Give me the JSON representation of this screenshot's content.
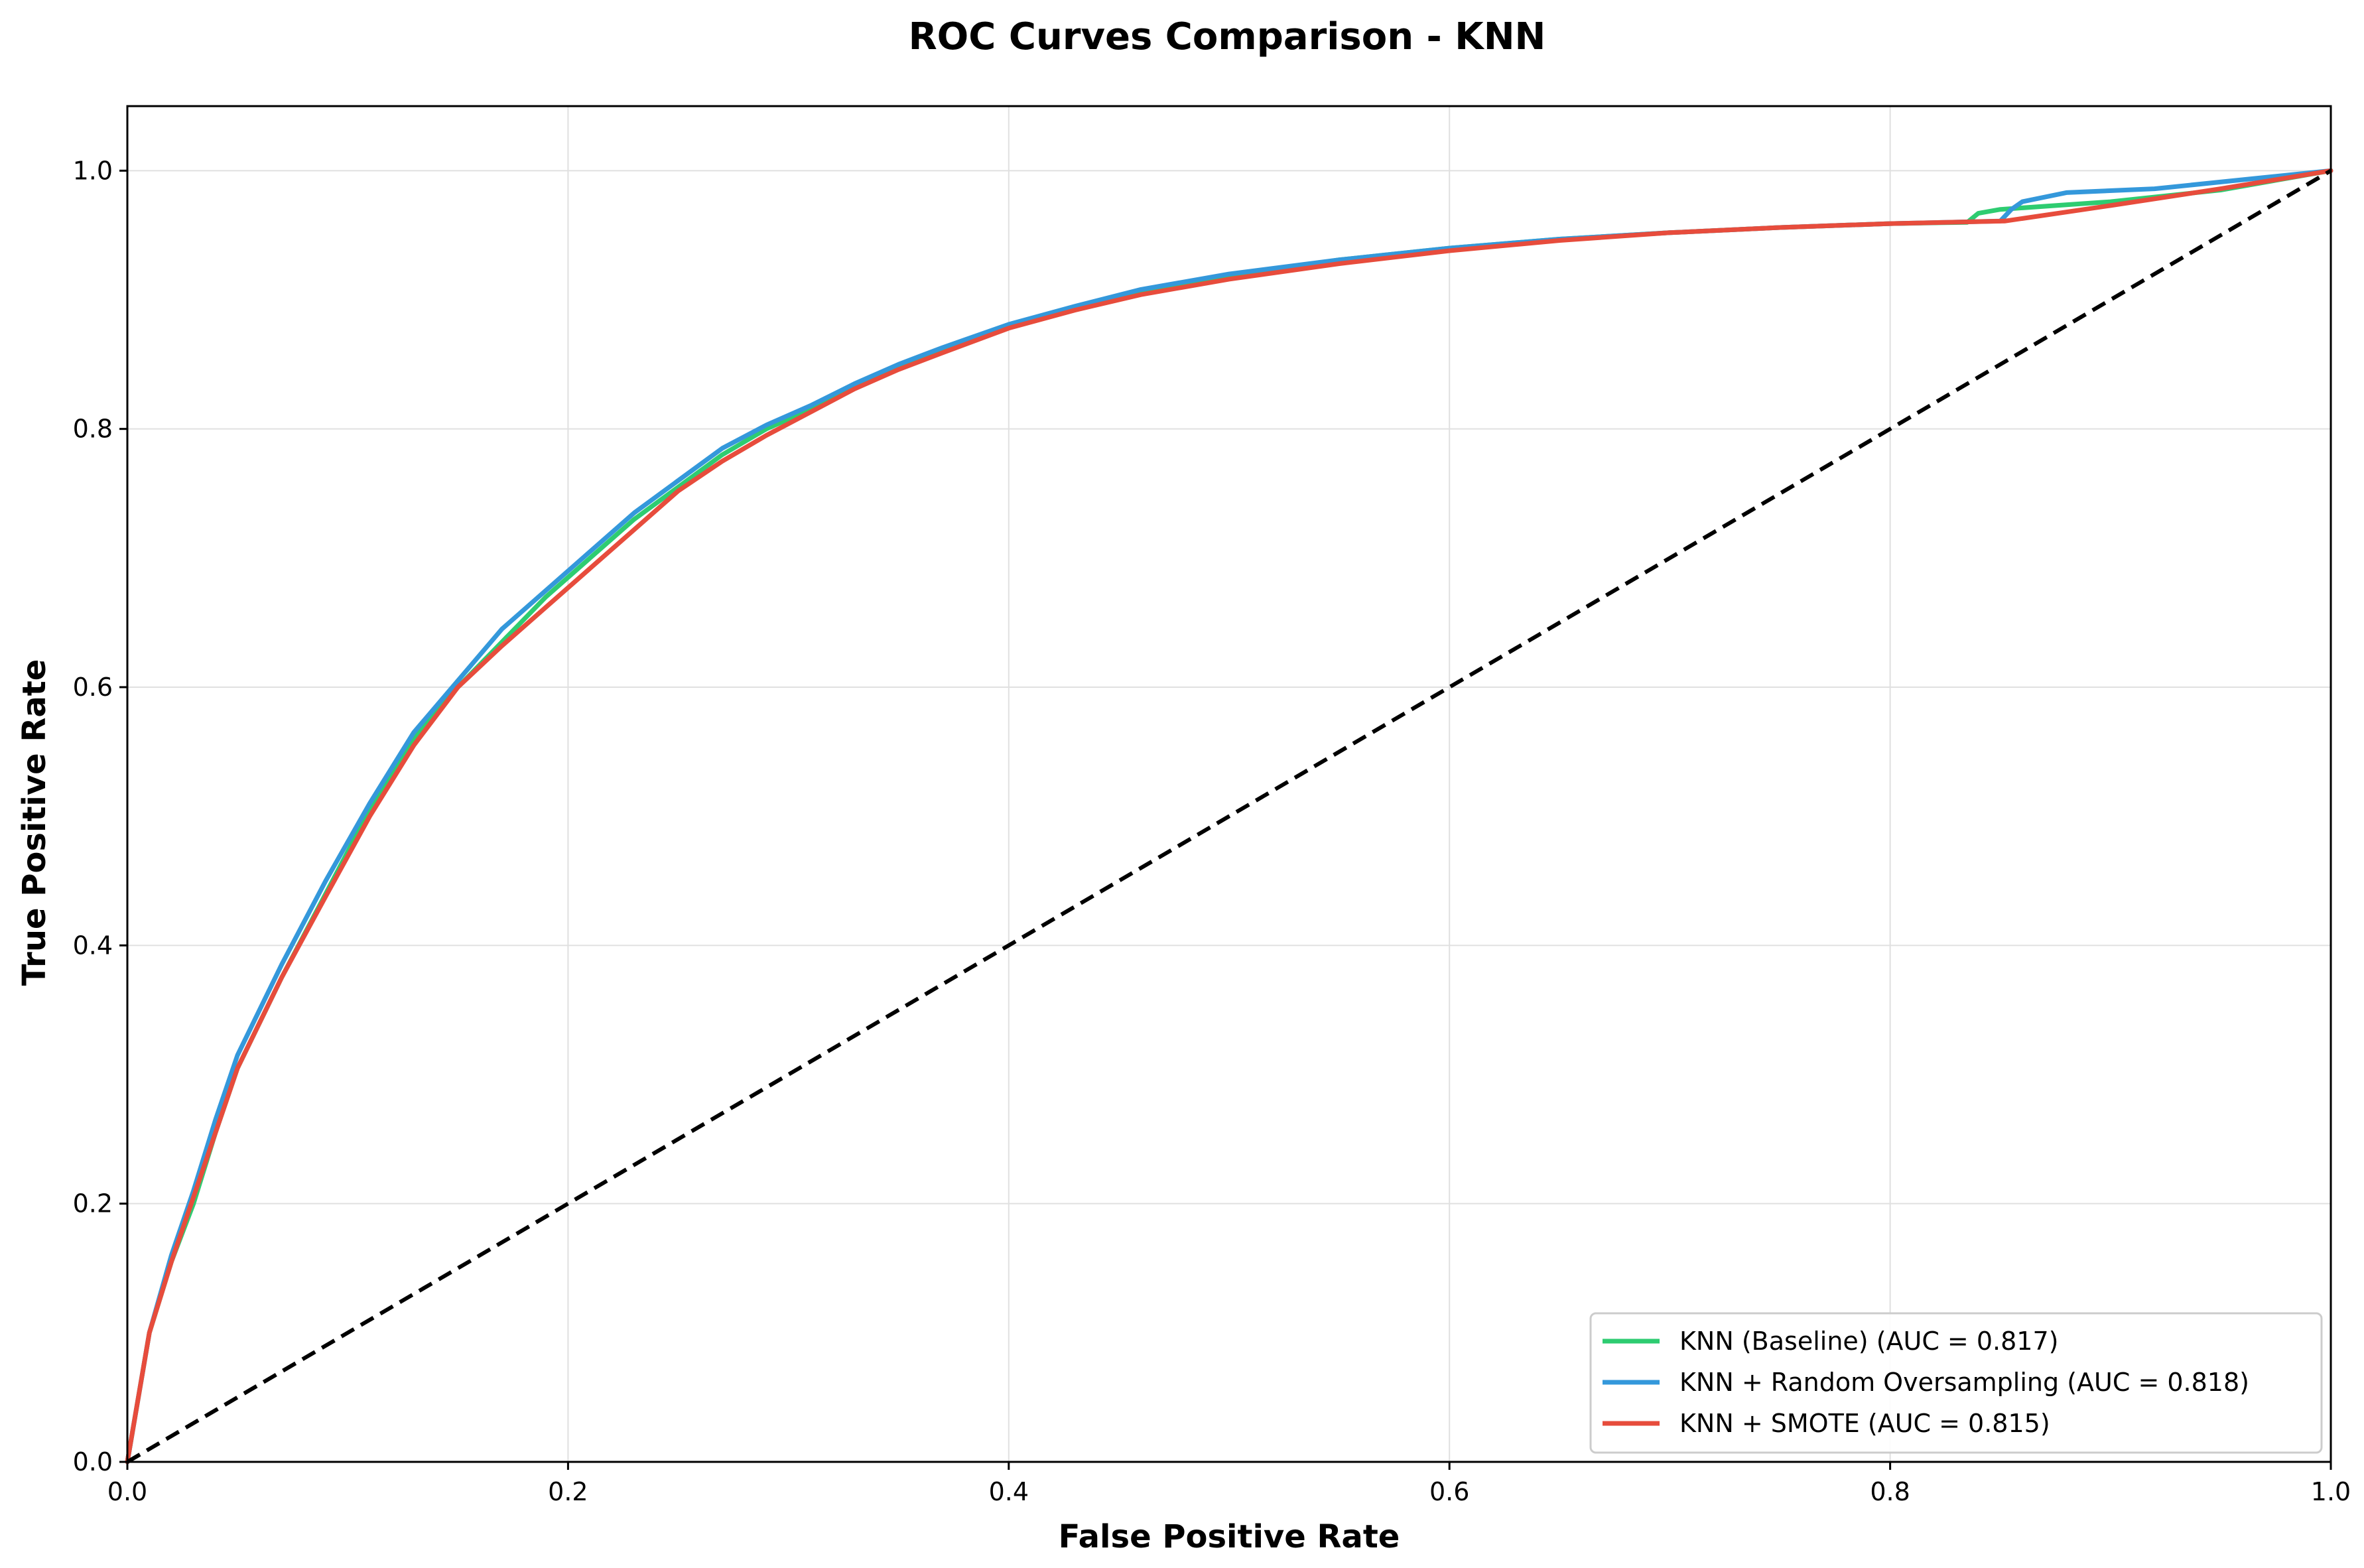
{
  "chart_data": {
    "type": "line",
    "title": "ROC Curves Comparison - KNN",
    "xlabel": "False Positive Rate",
    "ylabel": "True Positive Rate",
    "xlim": [
      0.0,
      1.0
    ],
    "ylim": [
      0.0,
      1.05
    ],
    "xticks": [
      "0.0",
      "0.2",
      "0.4",
      "0.6",
      "0.8",
      "1.0"
    ],
    "yticks": [
      "0.0",
      "0.2",
      "0.4",
      "0.6",
      "0.8",
      "1.0"
    ],
    "grid": true,
    "legend_position": "lower right",
    "series": [
      {
        "name": "KNN (Baseline) (AUC = 0.817)",
        "color": "#2ecc71",
        "x": [
          0,
          0.01,
          0.02,
          0.03,
          0.04,
          0.05,
          0.07,
          0.09,
          0.11,
          0.13,
          0.15,
          0.17,
          0.19,
          0.21,
          0.23,
          0.25,
          0.27,
          0.29,
          0.31,
          0.33,
          0.35,
          0.37,
          0.4,
          0.43,
          0.46,
          0.5,
          0.55,
          0.6,
          0.65,
          0.7,
          0.75,
          0.8,
          0.835,
          0.84,
          0.85,
          0.9,
          0.95,
          1.0
        ],
        "y": [
          0,
          0.1,
          0.155,
          0.2,
          0.255,
          0.305,
          0.375,
          0.44,
          0.505,
          0.56,
          0.6,
          0.635,
          0.67,
          0.7,
          0.73,
          0.755,
          0.78,
          0.8,
          0.815,
          0.833,
          0.848,
          0.862,
          0.88,
          0.894,
          0.906,
          0.918,
          0.931,
          0.94,
          0.947,
          0.952,
          0.956,
          0.959,
          0.96,
          0.967,
          0.97,
          0.976,
          0.985,
          1.0
        ]
      },
      {
        "name": "KNN + Random Oversampling (AUC = 0.818)",
        "color": "#3498db",
        "x": [
          0,
          0.01,
          0.02,
          0.03,
          0.04,
          0.05,
          0.07,
          0.09,
          0.11,
          0.13,
          0.15,
          0.17,
          0.19,
          0.21,
          0.23,
          0.25,
          0.27,
          0.29,
          0.31,
          0.33,
          0.35,
          0.37,
          0.4,
          0.43,
          0.46,
          0.5,
          0.55,
          0.6,
          0.65,
          0.7,
          0.75,
          0.8,
          0.85,
          0.855,
          0.86,
          0.88,
          0.92,
          1.0
        ],
        "y": [
          0,
          0.1,
          0.16,
          0.21,
          0.265,
          0.315,
          0.385,
          0.45,
          0.51,
          0.565,
          0.605,
          0.645,
          0.675,
          0.705,
          0.735,
          0.76,
          0.785,
          0.803,
          0.818,
          0.835,
          0.85,
          0.863,
          0.881,
          0.895,
          0.908,
          0.92,
          0.931,
          0.94,
          0.947,
          0.952,
          0.956,
          0.959,
          0.961,
          0.97,
          0.976,
          0.983,
          0.986,
          1.0
        ]
      },
      {
        "name": "KNN + SMOTE (AUC = 0.815)",
        "color": "#e74c3c",
        "x": [
          0,
          0.01,
          0.02,
          0.03,
          0.04,
          0.05,
          0.07,
          0.09,
          0.11,
          0.13,
          0.15,
          0.17,
          0.19,
          0.21,
          0.23,
          0.25,
          0.27,
          0.29,
          0.31,
          0.33,
          0.35,
          0.37,
          0.4,
          0.43,
          0.46,
          0.5,
          0.55,
          0.6,
          0.65,
          0.7,
          0.75,
          0.8,
          0.852,
          0.9,
          0.95,
          1.0
        ],
        "y": [
          0,
          0.1,
          0.155,
          0.205,
          0.255,
          0.305,
          0.375,
          0.438,
          0.5,
          0.555,
          0.6,
          0.632,
          0.662,
          0.692,
          0.722,
          0.752,
          0.775,
          0.795,
          0.813,
          0.831,
          0.846,
          0.859,
          0.878,
          0.892,
          0.904,
          0.916,
          0.928,
          0.938,
          0.946,
          0.952,
          0.956,
          0.959,
          0.961,
          0.973,
          0.986,
          1.0
        ]
      }
    ],
    "reference_line": {
      "x": [
        0,
        1
      ],
      "y": [
        0,
        1
      ],
      "color": "#000000",
      "style": "dashed"
    }
  }
}
